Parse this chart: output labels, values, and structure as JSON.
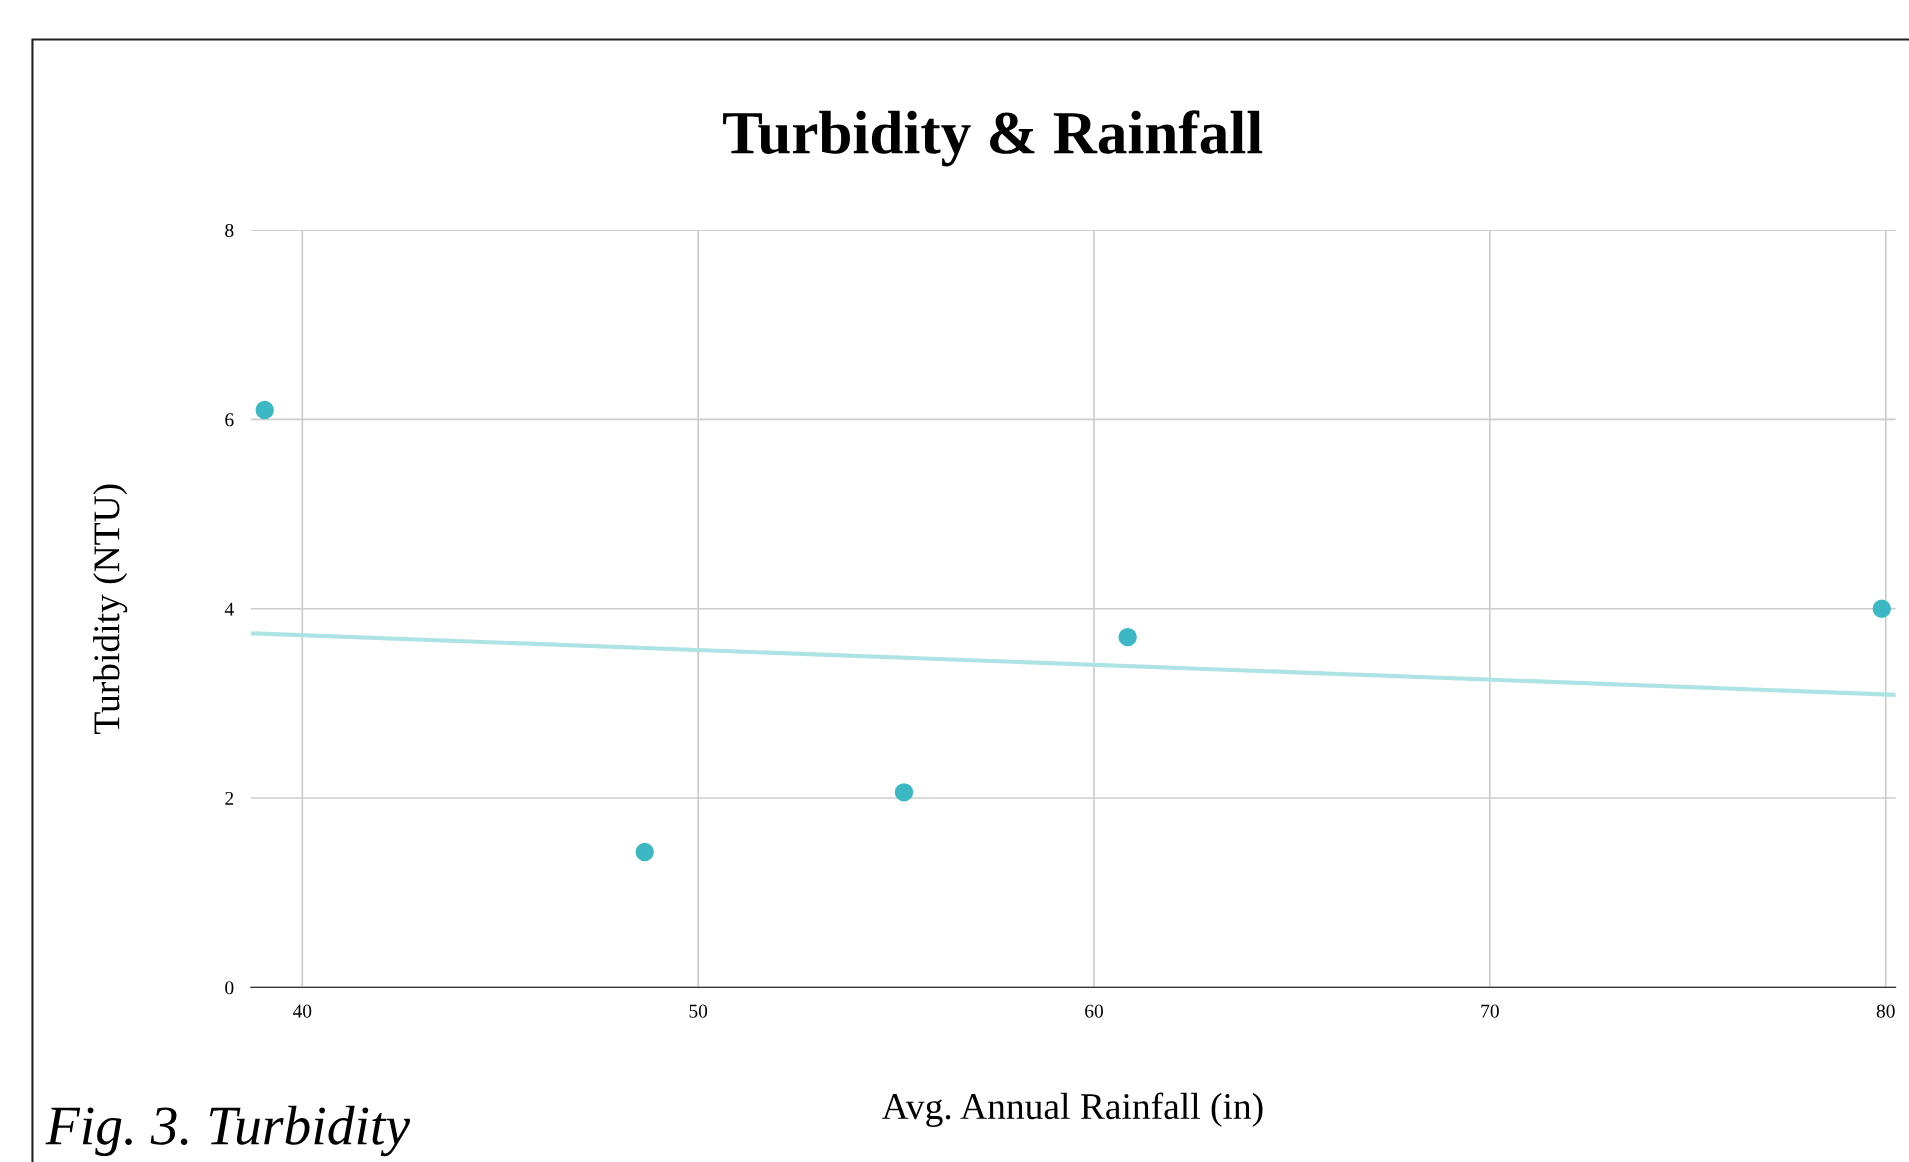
{
  "chart_data": {
    "type": "scatter",
    "title": "Turbidity & Rainfall",
    "xlabel": "Avg. Annual Rainfall (in)",
    "ylabel": "Turbidity (NTU)",
    "annotations": [
      "Fig. 3. Turbidity"
    ],
    "xlim": [
      38.7,
      80.25
    ],
    "xticks": [
      40,
      50,
      60,
      70,
      80
    ],
    "ylim": [
      0,
      8
    ],
    "yticks": [
      0,
      2,
      4,
      6,
      8
    ],
    "grid": true,
    "legend": false,
    "series": [
      {
        "marker": "circle",
        "color": "#3cb8c4",
        "x": [
          39.05,
          48.65,
          55.2,
          60.85,
          79.9
        ],
        "values": [
          6.1,
          1.43,
          2.06,
          3.7,
          4.0
        ]
      },
      {
        "type": "line",
        "marker": "none",
        "color": "#aee3e6",
        "x": [
          38.7,
          80.25
        ],
        "values": [
          3.74,
          3.09
        ]
      }
    ]
  }
}
